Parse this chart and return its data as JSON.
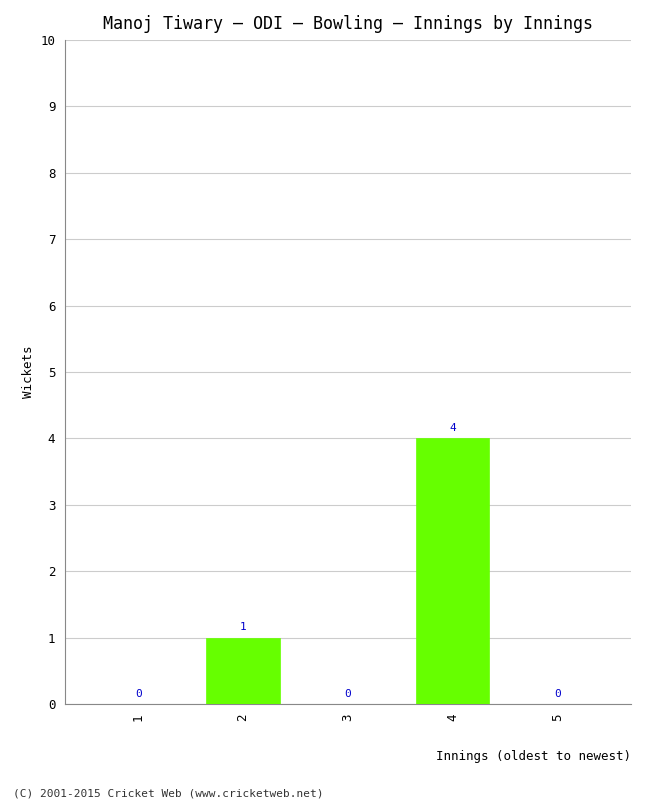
{
  "title": "Manoj Tiwary – ODI – Bowling – Innings by Innings",
  "xlabel": "Innings (oldest to newest)",
  "ylabel": "Wickets",
  "categories": [
    1,
    2,
    3,
    4,
    5
  ],
  "values": [
    0,
    1,
    0,
    4,
    0
  ],
  "bar_color": "#66ff00",
  "bar_edge_color": "#66ff00",
  "value_color": "#0000cc",
  "ylim": [
    0,
    10
  ],
  "yticks": [
    0,
    1,
    2,
    3,
    4,
    5,
    6,
    7,
    8,
    9,
    10
  ],
  "background_color": "#ffffff",
  "grid_color": "#cccccc",
  "footer": "(C) 2001-2015 Cricket Web (www.cricketweb.net)",
  "title_fontsize": 12,
  "label_fontsize": 9,
  "tick_fontsize": 9,
  "value_fontsize": 8,
  "footer_fontsize": 8,
  "bar_width": 0.7
}
